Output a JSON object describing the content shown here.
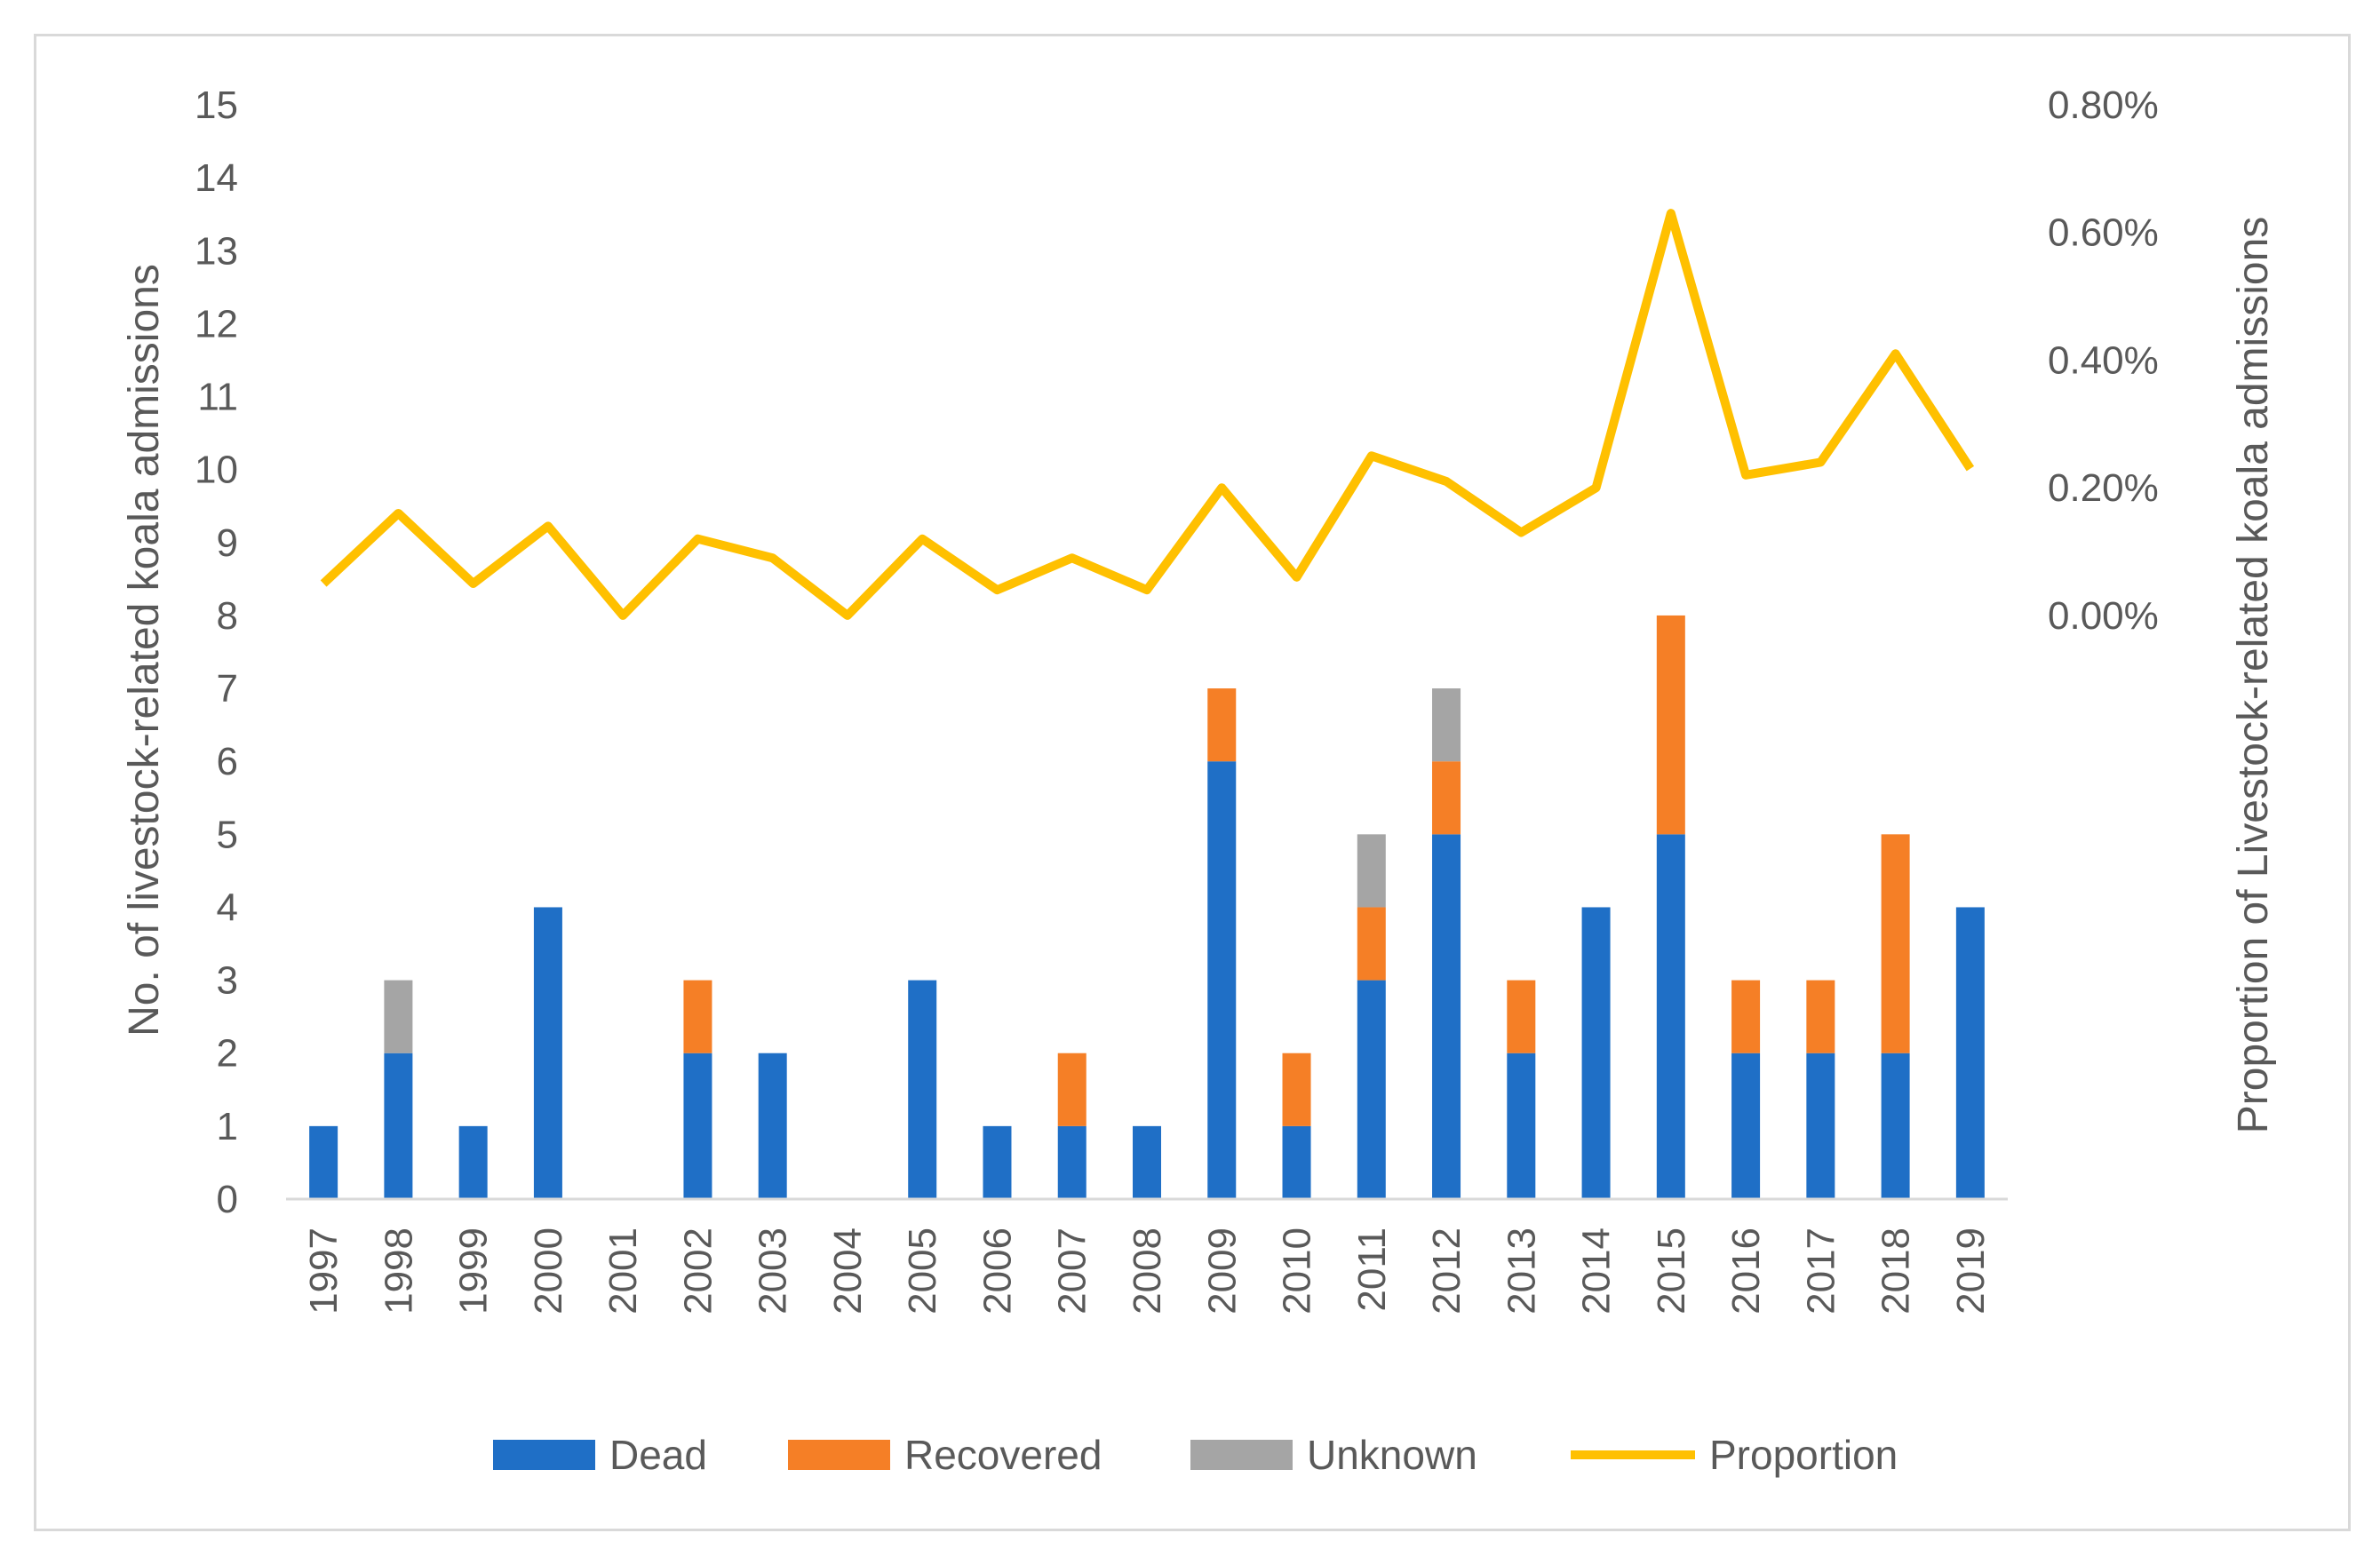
{
  "chart_data": {
    "type": "bar",
    "stacked": true,
    "title": "",
    "xlabel": "",
    "ylabel": "No. of livestock-related koala admissions",
    "y2label": "Proportion of Livestock-related koala admissions",
    "categories": [
      "1997",
      "1998",
      "1999",
      "2000",
      "2001",
      "2002",
      "2003",
      "2004",
      "2005",
      "2006",
      "2007",
      "2008",
      "2009",
      "2010",
      "2011",
      "2012",
      "2013",
      "2014",
      "2015",
      "2016",
      "2017",
      "2018",
      "2019"
    ],
    "ylim": [
      0,
      15
    ],
    "yticks": [
      0,
      1,
      2,
      3,
      4,
      5,
      6,
      7,
      8,
      9,
      10,
      11,
      12,
      13,
      14,
      15
    ],
    "y2lim": [
      0.0,
      0.8
    ],
    "y2ticks": [
      "0.00%",
      "0.20%",
      "0.40%",
      "0.60%",
      "0.80%"
    ],
    "series": [
      {
        "name": "Dead",
        "type": "bar",
        "color": "#1f6fc6",
        "values": [
          1,
          2,
          1,
          4,
          0,
          2,
          2,
          0,
          3,
          1,
          1,
          1,
          6,
          1,
          3,
          5,
          2,
          4,
          5,
          2,
          2,
          2,
          4
        ]
      },
      {
        "name": "Recovered",
        "type": "bar",
        "color": "#f57f26",
        "values": [
          0,
          0,
          0,
          0,
          0,
          1,
          0,
          0,
          0,
          0,
          1,
          0,
          1,
          1,
          1,
          1,
          1,
          0,
          3,
          1,
          1,
          3,
          0
        ]
      },
      {
        "name": "Unknown",
        "type": "bar",
        "color": "#a5a5a5",
        "values": [
          0,
          1,
          0,
          0,
          0,
          0,
          0,
          0,
          0,
          0,
          0,
          0,
          0,
          0,
          1,
          1,
          0,
          0,
          0,
          0,
          0,
          0,
          0
        ]
      },
      {
        "name": "Proportion",
        "type": "line",
        "axis": "right",
        "unit": "%",
        "color": "#ffc000",
        "values": [
          0.05,
          0.16,
          0.05,
          0.14,
          0.0,
          0.12,
          0.09,
          0.0,
          0.12,
          0.04,
          0.09,
          0.04,
          0.2,
          0.06,
          0.25,
          0.21,
          0.13,
          0.2,
          0.63,
          0.22,
          0.24,
          0.41,
          0.23
        ]
      }
    ],
    "legend": {
      "position": "bottom",
      "labels": [
        "Dead",
        "Recovered",
        "Unknown",
        "Proportion"
      ]
    }
  }
}
